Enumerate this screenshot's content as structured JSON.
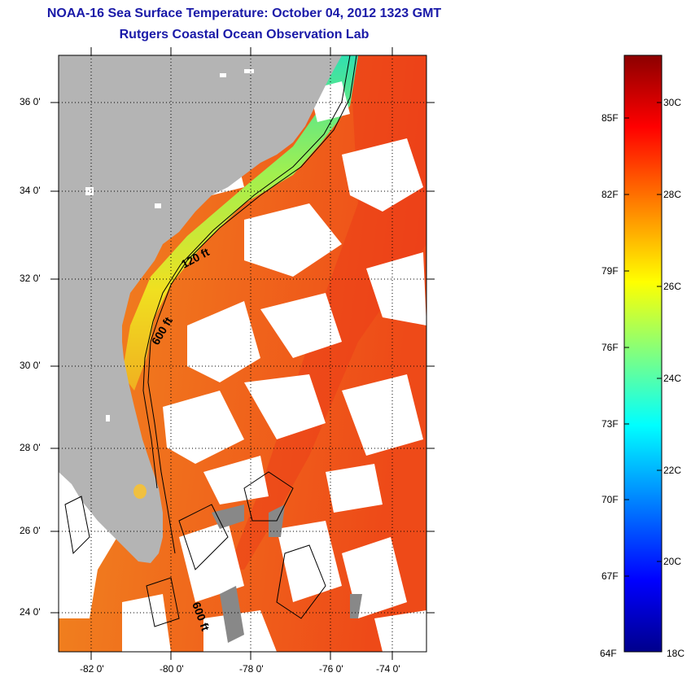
{
  "header": {
    "title": "NOAA-16 Sea Surface Temperature:  October 04, 2012 1323 GMT",
    "subtitle": "Rutgers Coastal Ocean Observation Lab"
  },
  "map": {
    "x_ticks": [
      "-82 0'",
      "-80 0'",
      "-78 0'",
      "-76 0'",
      "-74 0'"
    ],
    "y_ticks": [
      "36 0'",
      "34 0'",
      "32 0'",
      "30 0'",
      "28 0'",
      "26 0'",
      "24 0'"
    ],
    "isobath_labels": [
      "120 ft",
      "600 ft",
      "600 ft"
    ],
    "colors": {
      "land": "#b4b4b4",
      "cloud": "#ffffff",
      "shelf_water": "#f0e020",
      "offshore_water": "#f07020"
    }
  },
  "colorbar": {
    "fahrenheit_labels": [
      "85F",
      "82F",
      "79F",
      "76F",
      "73F",
      "70F",
      "67F",
      "64F"
    ],
    "celsius_labels": [
      "30C",
      "28C",
      "26C",
      "24C",
      "22C",
      "20C",
      "18C"
    ],
    "stops": [
      "#00008c",
      "#0000ff",
      "#0080ff",
      "#00ffff",
      "#80ff80",
      "#ffff00",
      "#ff8000",
      "#ff0000",
      "#8c0000"
    ]
  }
}
